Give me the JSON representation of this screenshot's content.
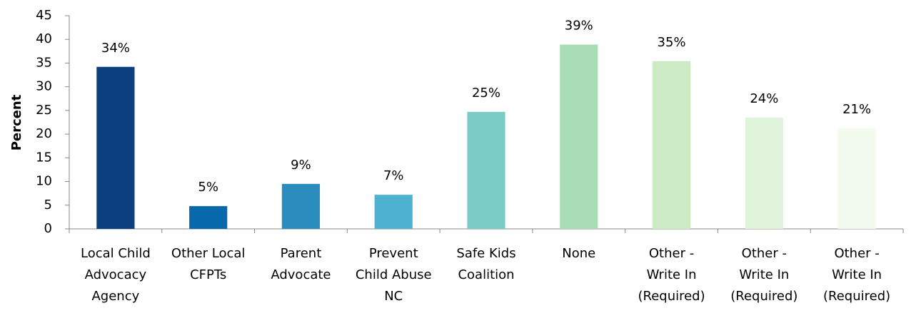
{
  "chart_data": {
    "type": "bar",
    "y_label": "Percent",
    "categories": [
      [
        "Local Child",
        "Advocacy",
        "Agency"
      ],
      [
        "Other Local",
        "CFPTs"
      ],
      [
        "Parent",
        "Advocate"
      ],
      [
        "Prevent",
        "Child Abuse",
        "NC"
      ],
      [
        "Safe Kids",
        "Coalition"
      ],
      [
        "None"
      ],
      [
        "Other -",
        "Write In",
        "(Required)"
      ],
      [
        "Other -",
        "Write In",
        "(Required)"
      ],
      [
        "Other -",
        "Write In",
        "(Required)"
      ]
    ],
    "values": [
      34.2,
      4.8,
      9.5,
      7.2,
      24.7,
      38.9,
      35.4,
      23.5,
      21.2
    ],
    "value_labels": [
      "34%",
      "5%",
      "9%",
      "7%",
      "25%",
      "39%",
      "35%",
      "24%",
      "21%"
    ],
    "colors": [
      "#0b3f7e",
      "#0868ac",
      "#2b8cbe",
      "#4eb3d3",
      "#7bccc4",
      "#a8ddb5",
      "#ccebc5",
      "#e0f3db",
      "#f3fbef"
    ],
    "ylim": [
      0,
      45
    ],
    "yticks": [
      0,
      5,
      10,
      15,
      20,
      25,
      30,
      35,
      40,
      45
    ],
    "grid": false
  }
}
